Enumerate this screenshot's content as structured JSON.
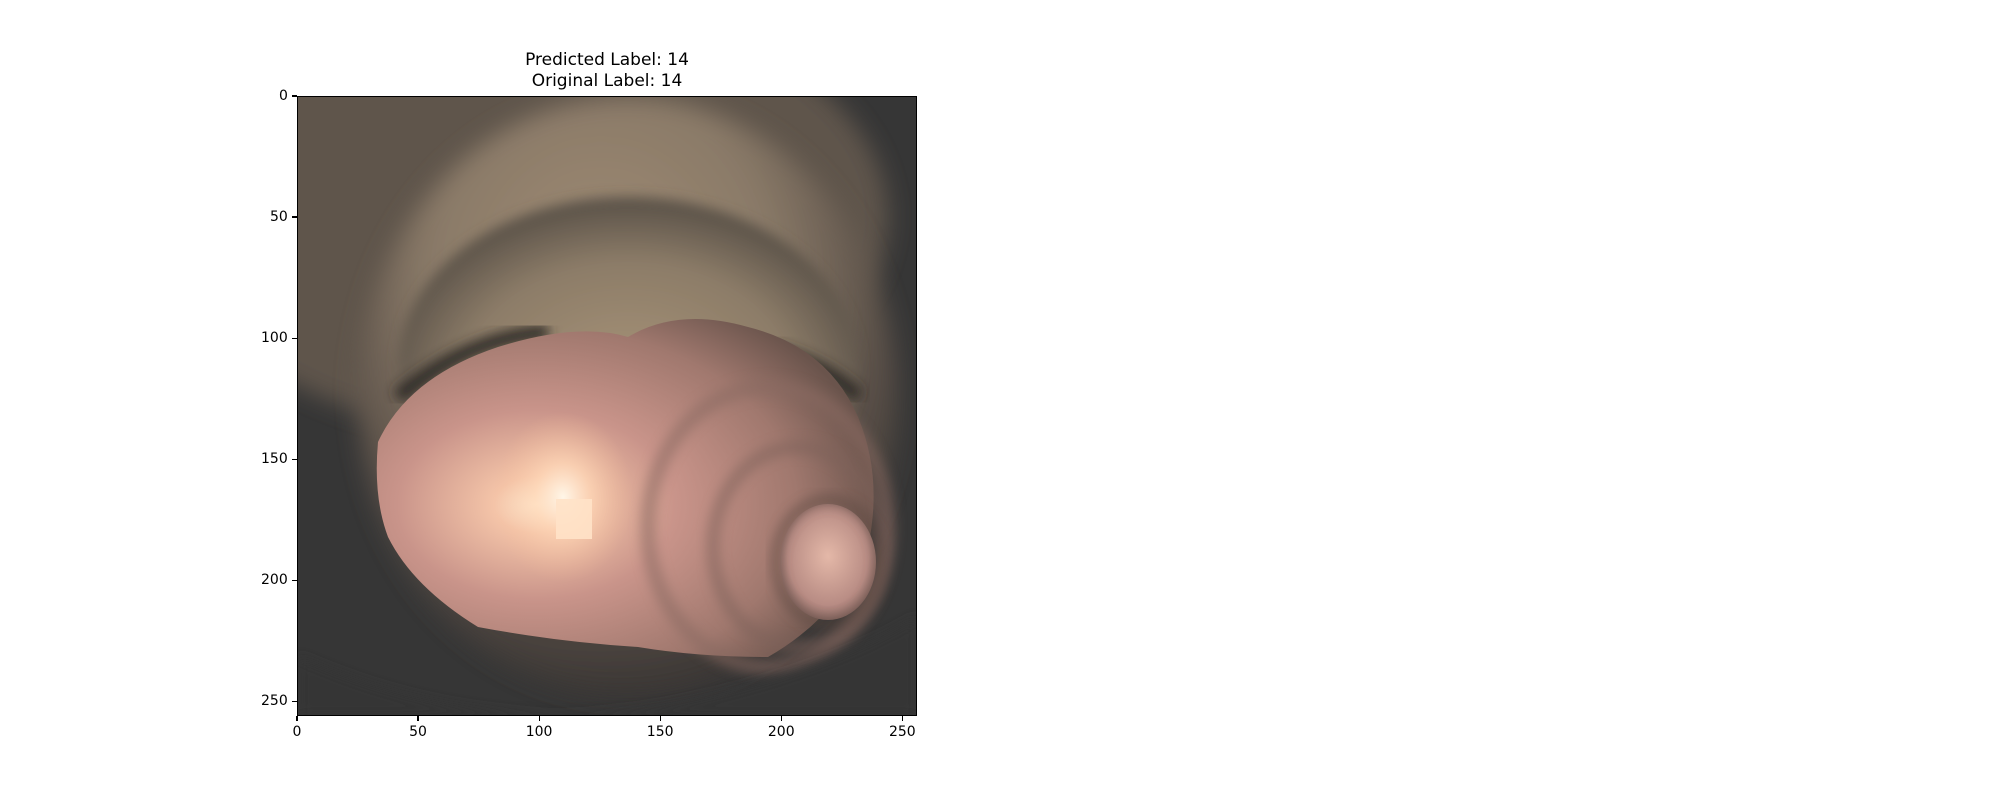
{
  "figure": {
    "title_line1": "Predicted Label: 14",
    "title_line2": "Original Label: 14",
    "image_description_icon": "endoscopy-tunnel-image",
    "x_ticks": [
      "0",
      "50",
      "100",
      "150",
      "200",
      "250"
    ],
    "y_ticks": [
      "0",
      "50",
      "100",
      "150",
      "200",
      "250"
    ],
    "x_range": [
      0,
      256
    ],
    "y_range": [
      0,
      256
    ]
  }
}
